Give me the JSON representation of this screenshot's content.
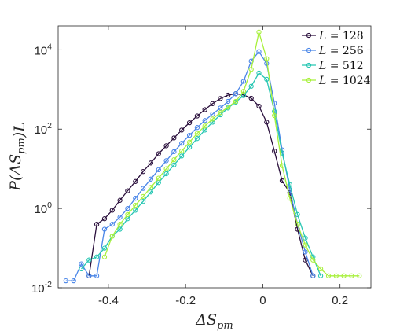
{
  "chart_data": {
    "type": "line",
    "title": "",
    "xlabel": "ΔS_pm",
    "ylabel": "P(ΔS_pm)L",
    "xlim": [
      -0.53,
      0.28
    ],
    "ylim": [
      0.01,
      40000
    ],
    "y_scale": "log",
    "x_ticks": [
      {
        "value": -0.4,
        "label": "-0.4"
      },
      {
        "value": -0.2,
        "label": "-0.2"
      },
      {
        "value": 0,
        "label": "0"
      },
      {
        "value": 0.2,
        "label": "0.2"
      }
    ],
    "y_ticks": [
      {
        "value": 0.01,
        "base": "10",
        "exp": "-2"
      },
      {
        "value": 1,
        "base": "10",
        "exp": "0"
      },
      {
        "value": 100,
        "base": "10",
        "exp": "2"
      },
      {
        "value": 10000,
        "base": "10",
        "exp": "4"
      }
    ],
    "grid": false,
    "legend_position": "top-right",
    "series": [
      {
        "name": "L = 128",
        "color": "#2a0f3c",
        "x": [
          -0.45,
          -0.43,
          -0.41,
          -0.39,
          -0.37,
          -0.35,
          -0.33,
          -0.31,
          -0.29,
          -0.27,
          -0.25,
          -0.23,
          -0.21,
          -0.19,
          -0.17,
          -0.15,
          -0.13,
          -0.11,
          -0.09,
          -0.07,
          -0.05,
          -0.03,
          -0.01,
          0.01,
          0.03,
          0.05,
          0.07,
          0.09,
          0.11,
          0.13
        ],
        "y": [
          0.02,
          0.4,
          0.55,
          0.9,
          1.6,
          2.8,
          4.8,
          8.5,
          14,
          24,
          38,
          60,
          95,
          145,
          215,
          310,
          440,
          590,
          720,
          780,
          730,
          600,
          380,
          150,
          28,
          5,
          2.5,
          0.3,
          0.05,
          0.02
        ]
      },
      {
        "name": "L = 256",
        "color": "#4a86e8",
        "x": [
          -0.51,
          -0.49,
          -0.47,
          -0.45,
          -0.43,
          -0.41,
          -0.39,
          -0.37,
          -0.35,
          -0.33,
          -0.31,
          -0.29,
          -0.27,
          -0.25,
          -0.23,
          -0.21,
          -0.19,
          -0.17,
          -0.15,
          -0.13,
          -0.11,
          -0.09,
          -0.07,
          -0.05,
          -0.03,
          -0.01,
          0.01,
          0.03,
          0.05,
          0.07,
          0.09,
          0.11,
          0.13
        ],
        "y": [
          0.015,
          0.015,
          0.04,
          0.02,
          0.02,
          0.3,
          0.4,
          0.6,
          1.0,
          1.8,
          3.2,
          5.5,
          9.5,
          16,
          27,
          44,
          70,
          110,
          165,
          240,
          340,
          500,
          780,
          1600,
          5200,
          9000,
          4500,
          450,
          30,
          3,
          0.4,
          0.08,
          0.02
        ]
      },
      {
        "name": "L = 512",
        "color": "#26c6b2",
        "x": [
          -0.47,
          -0.45,
          -0.43,
          -0.41,
          -0.39,
          -0.37,
          -0.35,
          -0.33,
          -0.31,
          -0.29,
          -0.27,
          -0.25,
          -0.23,
          -0.21,
          -0.19,
          -0.17,
          -0.15,
          -0.13,
          -0.11,
          -0.09,
          -0.07,
          -0.05,
          -0.03,
          -0.01,
          0.01,
          0.03,
          0.05,
          0.07,
          0.09,
          0.11,
          0.13,
          0.15
        ],
        "y": [
          0.03,
          0.05,
          0.06,
          0.1,
          0.2,
          0.3,
          0.55,
          0.9,
          1.5,
          2.6,
          4.5,
          7.5,
          12.5,
          21,
          35,
          58,
          95,
          150,
          230,
          340,
          480,
          700,
          1200,
          2600,
          1800,
          280,
          25,
          4,
          0.7,
          0.18,
          0.06,
          0.02
        ]
      },
      {
        "name": "L = 1024",
        "color": "#a8f03c",
        "x": [
          -0.41,
          -0.39,
          -0.37,
          -0.35,
          -0.33,
          -0.31,
          -0.29,
          -0.27,
          -0.25,
          -0.23,
          -0.21,
          -0.19,
          -0.17,
          -0.15,
          -0.13,
          -0.11,
          -0.09,
          -0.07,
          -0.05,
          -0.03,
          -0.01,
          0.01,
          0.03,
          0.05,
          0.07,
          0.09,
          0.11,
          0.13,
          0.15,
          0.17,
          0.19,
          0.21,
          0.23,
          0.25
        ],
        "y": [
          0.06,
          0.2,
          0.4,
          0.7,
          1.2,
          2.0,
          3.4,
          5.8,
          10,
          17,
          28,
          47,
          78,
          120,
          180,
          260,
          360,
          500,
          900,
          3200,
          28000,
          6000,
          220,
          12,
          1.8,
          0.4,
          0.12,
          0.05,
          0.03,
          0.02,
          0.02,
          0.02,
          0.02,
          0.02
        ]
      }
    ]
  }
}
